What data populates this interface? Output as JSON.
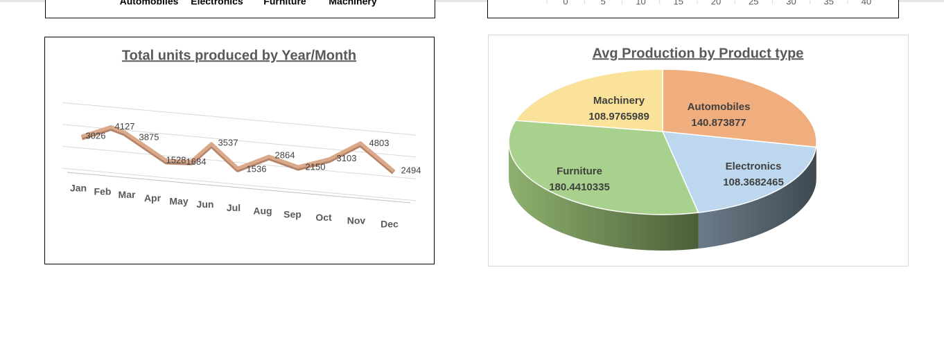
{
  "chart_data": [
    {
      "type": "bar",
      "categories": [
        "Automobiles",
        "Electronics",
        "Furniture",
        "Machinery"
      ]
    },
    {
      "type": "line",
      "title": "Total units produced by Year/Month",
      "categories": [
        "Jan",
        "Feb",
        "Mar",
        "Apr",
        "May",
        "Jun",
        "Jul",
        "Aug",
        "Sep",
        "Oct",
        "Nov",
        "Dec"
      ],
      "values": [
        3026,
        4127,
        3875,
        1528,
        1684,
        3537,
        1536,
        2864,
        2150,
        3103,
        4803,
        2494
      ],
      "color": "#d9a98a",
      "grid": true
    },
    {
      "type": "bar",
      "xlim": [
        0,
        40
      ],
      "xticks": [
        0,
        5,
        10,
        15,
        20,
        25,
        30,
        35,
        40
      ]
    },
    {
      "type": "pie",
      "title": "Avg Production by Product type",
      "categories": [
        "Automobiles",
        "Electronics",
        "Furniture",
        "Machinery"
      ],
      "values": [
        140.873877,
        108.3682465,
        180.4410335,
        108.9765989
      ],
      "colors": [
        "#f0ad7e",
        "#bdd7ee",
        "#a9d18e",
        "#fbe29a"
      ]
    }
  ]
}
